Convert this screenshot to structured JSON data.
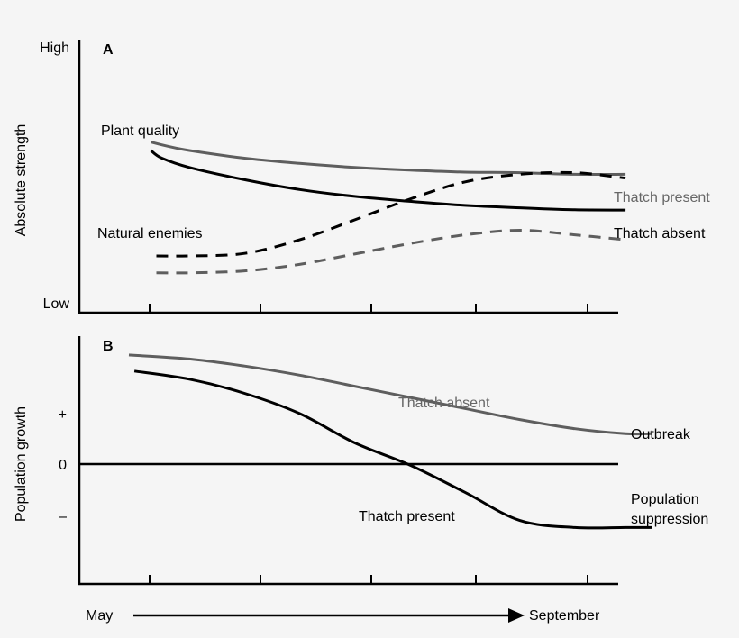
{
  "colors": {
    "background": "#f5f5f5",
    "thatch_absent": "#5e5e5e",
    "thatch_present": "#000000",
    "gray_label": "#666666"
  },
  "x_axis": {
    "start_label": "May",
    "end_label": "September"
  },
  "chart_data": [
    {
      "type": "line",
      "panel_label": "A",
      "ylabel": "Absolute strength",
      "ytick_labels": [
        "High",
        "Low"
      ],
      "xlim": [
        0,
        5
      ],
      "ylim": [
        0,
        100
      ],
      "series_labels": {
        "plant_quality": "Plant quality",
        "natural_enemies": "Natural enemies",
        "thatch_present": "Thatch present",
        "thatch_absent": "Thatch absent"
      },
      "series": [
        {
          "key": "pq_absent",
          "style": "solid",
          "color_key": "thatch_absent",
          "x": [
            0.65,
            0.8,
            1.0,
            1.5,
            2.0,
            2.5,
            3.0,
            3.5,
            4.0,
            4.5,
            4.96
          ],
          "y": [
            62.5,
            61.0,
            59.4,
            56.6,
            54.7,
            53.2,
            52.2,
            51.5,
            51.3,
            50.7,
            50.7
          ]
        },
        {
          "key": "pq_present",
          "style": "solid",
          "color_key": "thatch_present",
          "x": [
            0.65,
            0.75,
            1.0,
            1.5,
            2.0,
            2.5,
            3.0,
            3.5,
            4.0,
            4.5,
            4.96
          ],
          "y": [
            59.4,
            56.6,
            53.2,
            48.7,
            45.1,
            42.6,
            40.8,
            39.3,
            38.4,
            37.7,
            37.6
          ]
        },
        {
          "key": "ne_present",
          "style": "dashed",
          "color_key": "thatch_present",
          "x": [
            0.7,
            1.0,
            1.5,
            2.0,
            2.5,
            3.0,
            3.5,
            4.0,
            4.5,
            4.96
          ],
          "y": [
            20.8,
            20.8,
            21.7,
            26.7,
            34.0,
            41.6,
            47.9,
            50.7,
            51.3,
            49.3
          ]
        },
        {
          "key": "ne_absent",
          "style": "dashed",
          "color_key": "thatch_absent",
          "x": [
            0.7,
            1.0,
            1.5,
            2.0,
            2.5,
            3.0,
            3.5,
            4.0,
            4.5,
            4.96
          ],
          "y": [
            14.6,
            14.6,
            15.3,
            17.7,
            21.5,
            25.3,
            28.5,
            30.2,
            28.5,
            26.7
          ]
        }
      ]
    },
    {
      "type": "line",
      "panel_label": "B",
      "ylabel": "Population growth",
      "ytick_labels": [
        "+",
        "0",
        "–"
      ],
      "xlim": [
        0,
        5
      ],
      "ylim": [
        -1,
        1
      ],
      "series_labels": {
        "thatch_absent": "Thatch absent",
        "thatch_present": "Thatch present",
        "outbreak": "Outbreak",
        "suppression_line1": "Population",
        "suppression_line2": "suppression"
      },
      "series": [
        {
          "key": "pg_absent",
          "style": "solid",
          "color_key": "thatch_absent",
          "x": [
            0.45,
            1.0,
            1.5,
            2.0,
            2.5,
            3.0,
            3.5,
            4.0,
            4.5,
            4.96,
            5.2
          ],
          "y": [
            1.09,
            1.05,
            0.98,
            0.89,
            0.78,
            0.67,
            0.56,
            0.45,
            0.36,
            0.31,
            0.31
          ]
        },
        {
          "key": "pg_present",
          "style": "solid",
          "color_key": "thatch_present",
          "x": [
            0.5,
            1.0,
            1.5,
            2.0,
            2.5,
            3.0,
            3.5,
            4.0,
            4.5,
            4.96,
            5.2
          ],
          "y": [
            0.93,
            0.85,
            0.71,
            0.51,
            0.22,
            0.0,
            -0.27,
            -0.55,
            -0.62,
            -0.62,
            -0.62
          ]
        }
      ]
    }
  ]
}
